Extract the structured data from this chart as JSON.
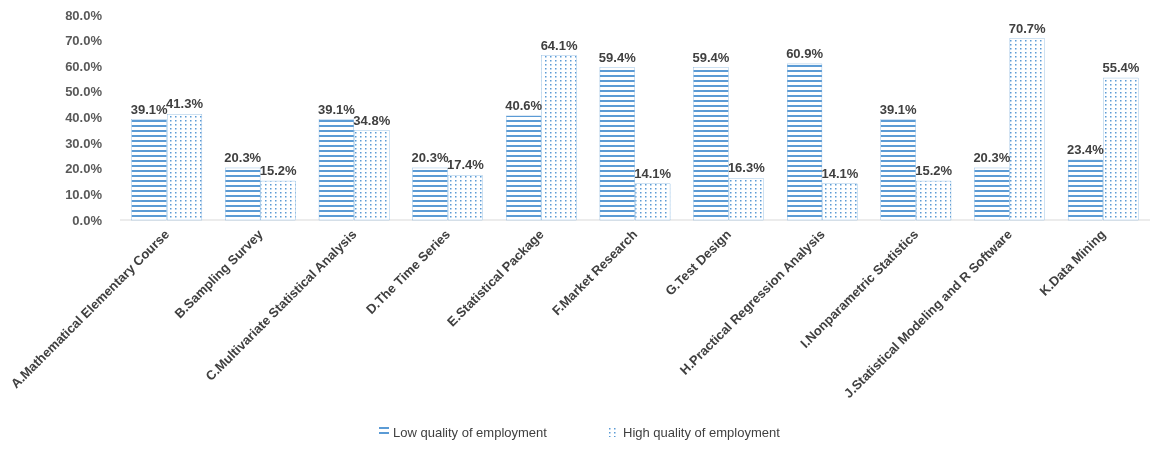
{
  "chart_data": {
    "type": "bar",
    "categories": [
      "A.Mathematical Elementary Course",
      "B.Sampling Survey",
      "C.Multivariate Statistical Analysis",
      "D.The Time Series",
      "E.Statistical Package",
      "F.Market Research",
      "G.Test Design",
      "H.Practical Regression Analysis",
      "I.Nonparametric Statistics",
      "J.Statistical Modeling and R Software",
      "K.Data Mining"
    ],
    "series": [
      {
        "name": "Low quality of employment",
        "color": "#5b9bd5",
        "values": [
          39.1,
          20.3,
          39.1,
          20.3,
          40.6,
          59.4,
          59.4,
          60.9,
          39.1,
          20.3,
          23.4
        ],
        "value_labels": [
          "39.1%",
          "20.3%",
          "39.1%",
          "20.3%",
          "40.6%",
          "59.4%",
          "59.4%",
          "60.9%",
          "39.1%",
          "20.3%",
          "23.4%"
        ]
      },
      {
        "name": "High quality of employment",
        "color": "#5b9bd5",
        "values": [
          41.3,
          15.2,
          34.8,
          17.4,
          64.1,
          14.1,
          16.3,
          14.1,
          15.2,
          70.7,
          55.4
        ],
        "value_labels": [
          "41.3%",
          "15.2%",
          "34.8%",
          "17.4%",
          "64.1%",
          "14.1%",
          "16.3%",
          "14.1%",
          "15.2%",
          "70.7%",
          "55.4%"
        ]
      }
    ],
    "ylim": [
      0,
      80
    ],
    "yticks": [
      {
        "value": 0,
        "label": "0.0%"
      },
      {
        "value": 10,
        "label": "10.0%"
      },
      {
        "value": 20,
        "label": "20.0%"
      },
      {
        "value": 30,
        "label": "30.0%"
      },
      {
        "value": 40,
        "label": "40.0%"
      },
      {
        "value": 50,
        "label": "50.0%"
      },
      {
        "value": 60,
        "label": "60.0%"
      },
      {
        "value": 70,
        "label": "70.0%"
      },
      {
        "value": 80,
        "label": "80.0%"
      }
    ],
    "legend": "bottom"
  }
}
